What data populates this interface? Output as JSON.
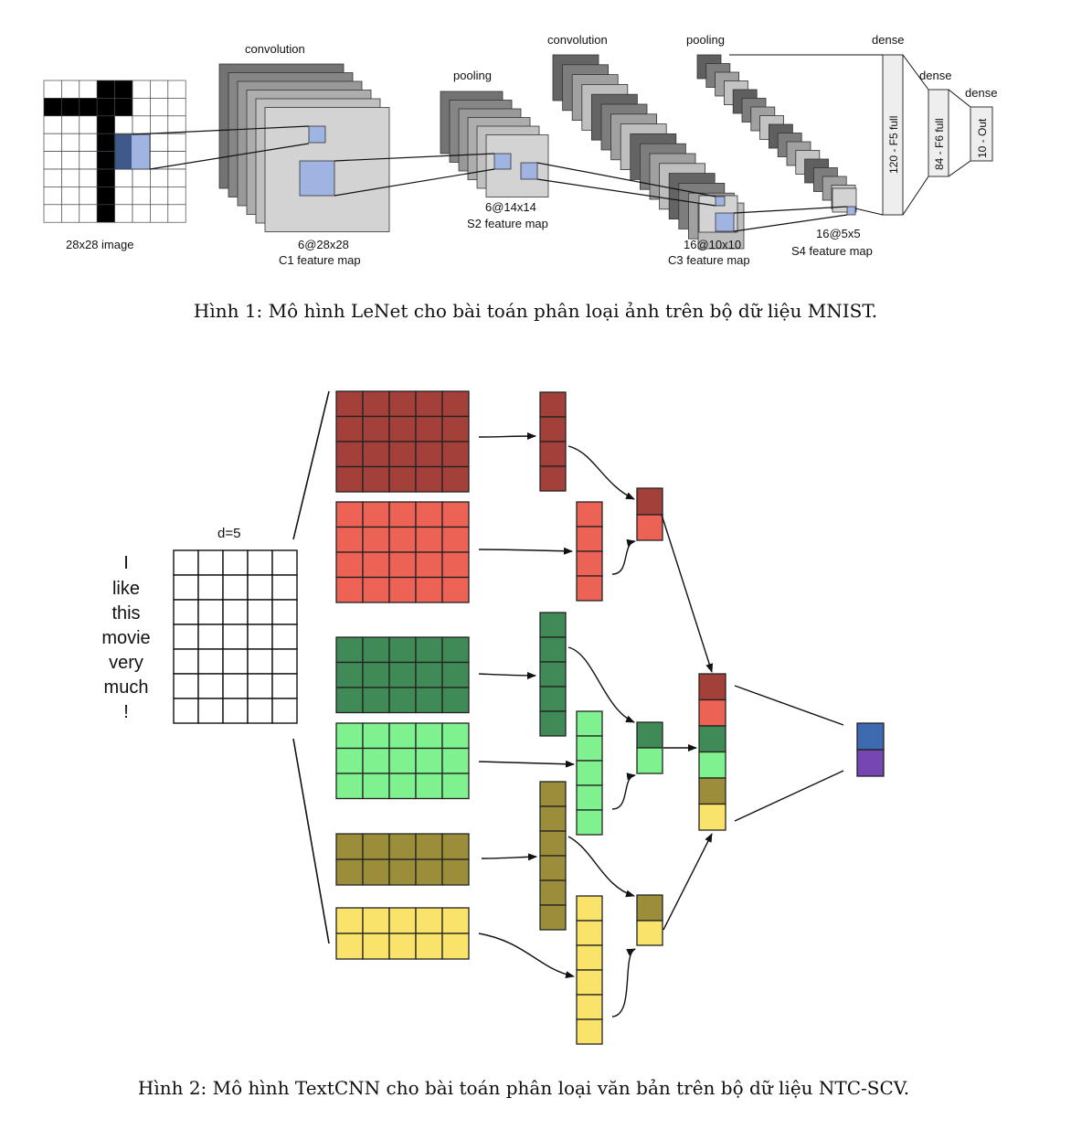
{
  "figure1": {
    "caption": "Hình 1: Mô hình LeNet cho bài toán phân loại ảnh trên bộ dữ liệu MNIST.",
    "labels": {
      "convolution_1": "convolution",
      "pooling_1": "pooling",
      "convolution_2": "convolution",
      "pooling_2": "pooling",
      "dense_1": "dense",
      "dense_2": "dense",
      "dense_3": "dense",
      "input_image": "28x28 image",
      "c1_size": "6@28x28",
      "c1_name": "C1 feature map",
      "s2_size": "6@14x14",
      "s2_name": "S2 feature map",
      "c3_size": "16@10x10",
      "c3_name": "C3 feature map",
      "s4_size": "16@5x5",
      "s4_name": "S4 feature map",
      "f5": "120 - F5 full",
      "f6": "84 - F6 full",
      "out": "10 - Out"
    },
    "colors": {
      "highlight": "#9fb4e0",
      "map_face": "#d3d3d3",
      "map_dark": "#555555"
    }
  },
  "figure2": {
    "caption": "Hình 2: Mô hình TextCNN cho bài toán phân loại văn bản trên bộ dữ liệu NTC-SCV.",
    "dim_label": "d=5",
    "words": [
      "I",
      "like",
      "this",
      "movie",
      "very",
      "much",
      "!"
    ],
    "colors": {
      "dark_red": "#a3403a",
      "light_red": "#ec6255",
      "dark_green": "#3f8a57",
      "light_green": "#7ff28f",
      "olive": "#9b8d3a",
      "yellow": "#fae36a",
      "out_blue": "#3e6ab0",
      "out_purple": "#7647b3"
    }
  }
}
